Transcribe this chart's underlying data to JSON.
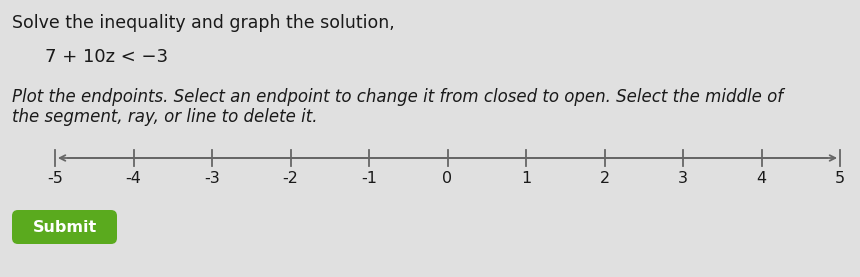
{
  "title_line1": "Solve the inequality and graph the solution,",
  "inequality": "7 + 10z < −3",
  "instruction_line1": "Plot the endpoints. Select an endpoint to change it from closed to open. Select the middle of",
  "instruction_line2": "the segment, ray, or line to delete it.",
  "number_line_min": -5,
  "number_line_max": 5,
  "tick_labels": [
    "-5",
    "-4",
    "-3",
    "-2",
    "-1",
    "0",
    "1",
    "2",
    "3",
    "4",
    "5"
  ],
  "tick_values": [
    -5,
    -4,
    -3,
    -2,
    -1,
    0,
    1,
    2,
    3,
    4,
    5
  ],
  "bg_color": "#e0e0e0",
  "number_line_color": "#666666",
  "text_color": "#1a1a1a",
  "submit_bg": "#5aaa1e",
  "submit_text": "Submit",
  "submit_text_color": "#ffffff",
  "title_fontsize": 12.5,
  "inequality_fontsize": 13,
  "instruction_fontsize": 12,
  "tick_fontsize": 11.5
}
